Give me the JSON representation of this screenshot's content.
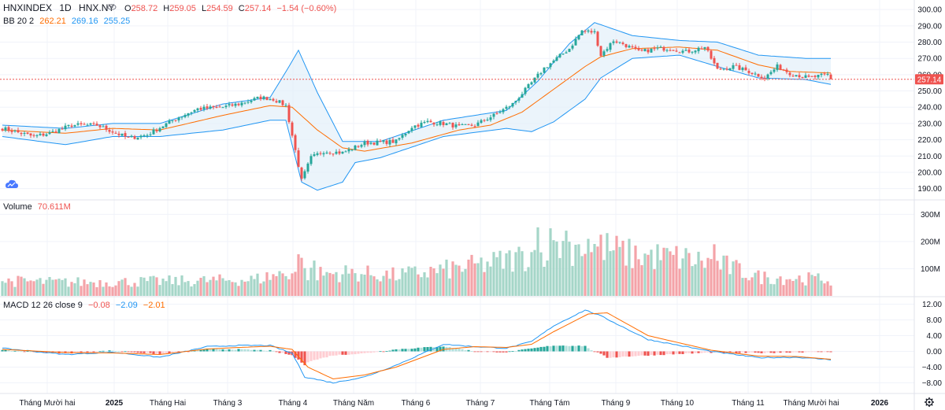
{
  "header": {
    "symbol": "HNXINDEX",
    "interval": "1D",
    "exchange": "HNX.NY",
    "open_label": "O",
    "open": "258.72",
    "high_label": "H",
    "high": "259.05",
    "low_label": "L",
    "low": "254.59",
    "close_label": "C",
    "close": "257.14",
    "change": "−1.54 (−0.60%)"
  },
  "bb_legend": {
    "name": "BB 20 2",
    "basis": "262.21",
    "upper": "269.16",
    "lower": "255.25"
  },
  "volume_legend": {
    "name": "Volume",
    "value": "70.611M"
  },
  "macd_legend": {
    "name": "MACD 12 26 close 9",
    "hist": "−0.08",
    "macd": "−2.09",
    "signal": "−2.01"
  },
  "last_price_tag": "257.14",
  "colors": {
    "up": "#26a69a",
    "down": "#ef5350",
    "vol_up": "#a5d6c8",
    "vol_down": "#f4a3a8",
    "bb_band": "#2196f3",
    "bb_basis": "#ff6d00",
    "bb_fill": "#e3f0fa",
    "macd_line": "#2196f3",
    "signal_line": "#ff6d00",
    "hist_up_strong": "#26a69a",
    "hist_up_weak": "#b2dfdb",
    "hist_down_strong": "#ef5350",
    "hist_down_weak": "#ffcdd2",
    "tag_bg": "#ef5350"
  },
  "icons": {
    "eye": "eye-icon",
    "settings": "settings-icon",
    "logo": "tradingview-cloud-icon"
  },
  "chart_data": {
    "type": "candlestick",
    "price_axis": {
      "ticks": [
        "300.00",
        "290.00",
        "280.00",
        "270.00",
        "260.00",
        "250.00",
        "240.00",
        "230.00",
        "220.00",
        "210.00",
        "200.00",
        "190.00"
      ],
      "range": [
        185,
        302
      ]
    },
    "volume_axis": {
      "ticks": [
        "300M",
        "200M",
        "100M"
      ],
      "range": [
        0,
        330
      ]
    },
    "macd_axis": {
      "ticks": [
        "12.00",
        "8.00",
        "4.00",
        "0.00",
        "−4.00",
        "−8.00"
      ],
      "range": [
        -9.5,
        12.5
      ]
    },
    "time_axis": [
      "Tháng Mười hai",
      "2025",
      "Tháng Hai",
      "Tháng 3",
      "Tháng 4",
      "Tháng Năm",
      "Tháng 6",
      "Tháng 7",
      "Tháng Tám",
      "Tháng 9",
      "Tháng 10",
      "Tháng 11",
      "Tháng Mười hai",
      "2026"
    ],
    "price_keyframes": [
      [
        0,
        227
      ],
      [
        10,
        222
      ],
      [
        15,
        224
      ],
      [
        22,
        229
      ],
      [
        30,
        229
      ],
      [
        40,
        221
      ],
      [
        46,
        223
      ],
      [
        55,
        233
      ],
      [
        62,
        239
      ],
      [
        70,
        240
      ],
      [
        75,
        242
      ],
      [
        82,
        246
      ],
      [
        86,
        245
      ],
      [
        90,
        241
      ],
      [
        95,
        195
      ],
      [
        98,
        209
      ],
      [
        102,
        213
      ],
      [
        108,
        212
      ],
      [
        115,
        218
      ],
      [
        125,
        219
      ],
      [
        130,
        228
      ],
      [
        135,
        231
      ],
      [
        140,
        230
      ],
      [
        145,
        228
      ],
      [
        150,
        229
      ],
      [
        156,
        235
      ],
      [
        162,
        242
      ],
      [
        168,
        255
      ],
      [
        172,
        264
      ],
      [
        176,
        270
      ],
      [
        180,
        276
      ],
      [
        184,
        287
      ],
      [
        188,
        286
      ],
      [
        190,
        272
      ],
      [
        194,
        281
      ],
      [
        197,
        279
      ],
      [
        202,
        274
      ],
      [
        208,
        276
      ],
      [
        212,
        276
      ],
      [
        217,
        274
      ],
      [
        223,
        277
      ],
      [
        227,
        263
      ],
      [
        232,
        265
      ],
      [
        237,
        262
      ],
      [
        242,
        258
      ],
      [
        246,
        265
      ],
      [
        250,
        261
      ],
      [
        256,
        258
      ],
      [
        262,
        260
      ],
      [
        263,
        257
      ]
    ],
    "basis_keyframes": [
      [
        0,
        226
      ],
      [
        20,
        224
      ],
      [
        35,
        227
      ],
      [
        50,
        226
      ],
      [
        70,
        235
      ],
      [
        85,
        241
      ],
      [
        92,
        240
      ],
      [
        100,
        226
      ],
      [
        108,
        215
      ],
      [
        115,
        213
      ],
      [
        130,
        218
      ],
      [
        145,
        226
      ],
      [
        155,
        229
      ],
      [
        165,
        237
      ],
      [
        175,
        251
      ],
      [
        185,
        265
      ],
      [
        190,
        271
      ],
      [
        200,
        276
      ],
      [
        215,
        277
      ],
      [
        227,
        275
      ],
      [
        240,
        266
      ],
      [
        250,
        262
      ],
      [
        263,
        261
      ]
    ],
    "upper_keyframes": [
      [
        0,
        229
      ],
      [
        20,
        227
      ],
      [
        35,
        230
      ],
      [
        50,
        230
      ],
      [
        70,
        242
      ],
      [
        85,
        246
      ],
      [
        91,
        265
      ],
      [
        94,
        275
      ],
      [
        100,
        249
      ],
      [
        108,
        219
      ],
      [
        120,
        219
      ],
      [
        140,
        232
      ],
      [
        160,
        238
      ],
      [
        170,
        256
      ],
      [
        180,
        279
      ],
      [
        188,
        292
      ],
      [
        200,
        284
      ],
      [
        215,
        281
      ],
      [
        227,
        280
      ],
      [
        240,
        272
      ],
      [
        255,
        270
      ],
      [
        263,
        270
      ]
    ],
    "lower_keyframes": [
      [
        0,
        222
      ],
      [
        20,
        217
      ],
      [
        35,
        222
      ],
      [
        50,
        222
      ],
      [
        70,
        226
      ],
      [
        85,
        232
      ],
      [
        90,
        232
      ],
      [
        95,
        194
      ],
      [
        100,
        189
      ],
      [
        108,
        194
      ],
      [
        112,
        206
      ],
      [
        120,
        209
      ],
      [
        140,
        222
      ],
      [
        160,
        227
      ],
      [
        168,
        225
      ],
      [
        175,
        231
      ],
      [
        185,
        245
      ],
      [
        190,
        258
      ],
      [
        200,
        270
      ],
      [
        215,
        272
      ],
      [
        227,
        265
      ],
      [
        240,
        258
      ],
      [
        255,
        257
      ],
      [
        263,
        254
      ]
    ],
    "volume_keyframes": [
      [
        0,
        55
      ],
      [
        20,
        50
      ],
      [
        40,
        52
      ],
      [
        60,
        55
      ],
      [
        80,
        60
      ],
      [
        92,
        90
      ],
      [
        100,
        80
      ],
      [
        110,
        85
      ],
      [
        125,
        75
      ],
      [
        140,
        95
      ],
      [
        150,
        110
      ],
      [
        160,
        130
      ],
      [
        170,
        160
      ],
      [
        175,
        200
      ],
      [
        180,
        180
      ],
      [
        190,
        180
      ],
      [
        200,
        150
      ],
      [
        215,
        140
      ],
      [
        227,
        120
      ],
      [
        240,
        70
      ],
      [
        263,
        60
      ]
    ],
    "volume_spikes": [
      [
        94,
        153
      ],
      [
        95,
        140
      ],
      [
        99,
        130
      ],
      [
        170,
        252
      ],
      [
        171,
        160
      ],
      [
        176,
        200
      ],
      [
        179,
        240
      ],
      [
        183,
        190
      ],
      [
        186,
        210
      ],
      [
        226,
        190
      ]
    ],
    "macd_keyframes": [
      [
        0,
        0.8
      ],
      [
        20,
        -0.8
      ],
      [
        35,
        -0.2
      ],
      [
        50,
        -1.5
      ],
      [
        65,
        1.2
      ],
      [
        75,
        1.5
      ],
      [
        85,
        1.5
      ],
      [
        92,
        -0.5
      ],
      [
        96,
        -6.5
      ],
      [
        105,
        -8.0
      ],
      [
        115,
        -6.5
      ],
      [
        125,
        -3.5
      ],
      [
        140,
        1.8
      ],
      [
        150,
        1.2
      ],
      [
        160,
        0.8
      ],
      [
        168,
        2.5
      ],
      [
        175,
        6.5
      ],
      [
        185,
        10.5
      ],
      [
        190,
        9.0
      ],
      [
        205,
        3.0
      ],
      [
        225,
        0.0
      ],
      [
        240,
        -1.6
      ],
      [
        252,
        -1.5
      ],
      [
        263,
        -2.1
      ]
    ],
    "signal_keyframes": [
      [
        0,
        0.5
      ],
      [
        20,
        -0.3
      ],
      [
        35,
        -0.4
      ],
      [
        50,
        -0.8
      ],
      [
        65,
        0.6
      ],
      [
        75,
        1.0
      ],
      [
        85,
        1.3
      ],
      [
        92,
        0.5
      ],
      [
        97,
        -4.0
      ],
      [
        105,
        -7.0
      ],
      [
        115,
        -6.0
      ],
      [
        125,
        -4.0
      ],
      [
        140,
        0.5
      ],
      [
        150,
        1.2
      ],
      [
        160,
        1.0
      ],
      [
        168,
        1.8
      ],
      [
        175,
        5.0
      ],
      [
        186,
        9.5
      ],
      [
        192,
        9.8
      ],
      [
        205,
        4.0
      ],
      [
        225,
        0.3
      ],
      [
        240,
        -1.2
      ],
      [
        252,
        -1.3
      ],
      [
        263,
        -2.0
      ]
    ]
  }
}
